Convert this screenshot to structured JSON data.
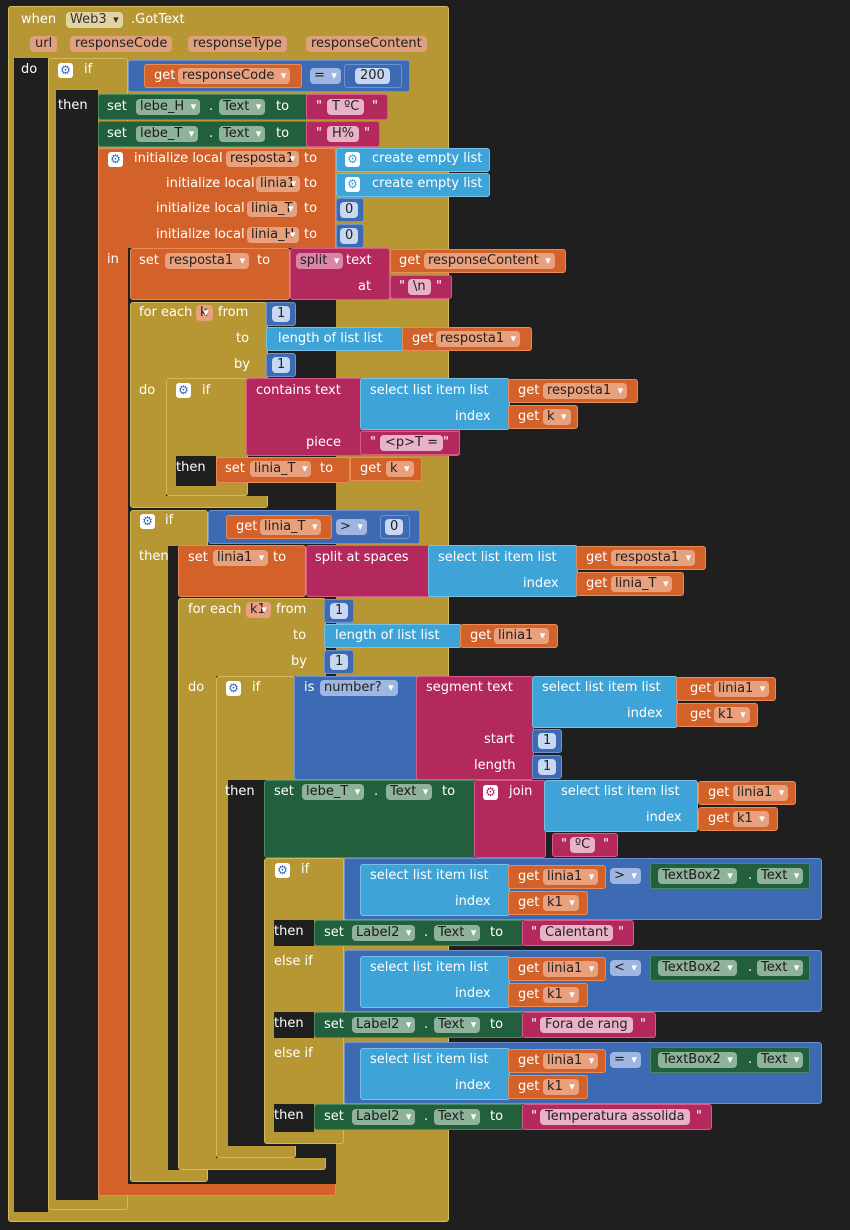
{
  "event": {
    "when": "when",
    "component": "Web3",
    "event_name": ".GotText",
    "params": [
      "url",
      "responseCode",
      "responseType",
      "responseContent"
    ],
    "do": "do"
  },
  "kw": {
    "if": "if",
    "then": "then",
    "else_if": "else if",
    "in": "in",
    "do": "do",
    "set": "set",
    "to": "to",
    "dot": ".",
    "get": "get",
    "initialize_local": "initialize local",
    "create_empty_list": "create empty list",
    "split": "split",
    "text": "text",
    "at": "at",
    "for_each": "for each",
    "from": "from",
    "by": "by",
    "length_of_list": "length of list  list",
    "contains_text": "contains  text",
    "select_list_item": "select list item  list",
    "index": "index",
    "piece": "piece",
    "split_at_spaces": "split at spaces",
    "is": "is",
    "number_q": "number?",
    "segment_text": "segment  text",
    "start": "start",
    "length": "length",
    "join": "join",
    "quote_open": "\"",
    "quote_close": "\""
  },
  "vars": {
    "responseCode": "responseCode",
    "responseContent": "responseContent",
    "resposta1": "resposta1",
    "linia1": "linia1",
    "linia_T": "linia_T",
    "linia_H": "linia_H",
    "k": "k",
    "k1": "k1"
  },
  "components": {
    "lebe_H": "lebe_H",
    "lebe_T": "lebe_T",
    "Label2": "Label2",
    "TextBox2": "TextBox2",
    "Text": "Text"
  },
  "ops": {
    "eq": "=",
    "gt": ">",
    "lt": "<"
  },
  "numbers": {
    "n200": "200",
    "n0": "0",
    "n1": "1"
  },
  "strings": {
    "t_c": "T ºC",
    "h_pct": "H%",
    "newline": "\\n",
    "pT": "<p>T =",
    "deg_c": "ºC",
    "calentant": "Calentant",
    "fora": "Fora de rang",
    "assolida": "Temperatura assolida"
  }
}
